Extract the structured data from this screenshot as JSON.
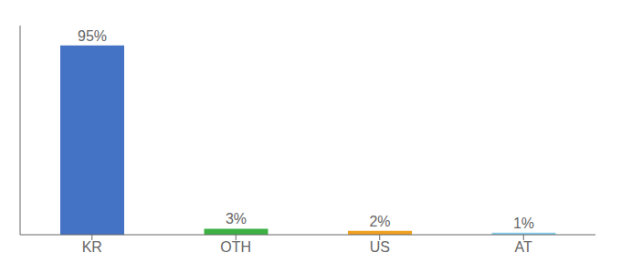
{
  "chart_data": {
    "type": "bar",
    "categories": [
      "KR",
      "OTH",
      "US",
      "AT"
    ],
    "values": [
      95,
      3,
      2,
      1
    ],
    "value_labels": [
      "95%",
      "3%",
      "2%",
      "1%"
    ],
    "colors": [
      "#4472c4",
      "#3cb043",
      "#f0a020",
      "#87ceeb"
    ],
    "ylim": [
      0,
      105
    ],
    "grid": false,
    "data_labels": true,
    "tick_labels": "x"
  }
}
